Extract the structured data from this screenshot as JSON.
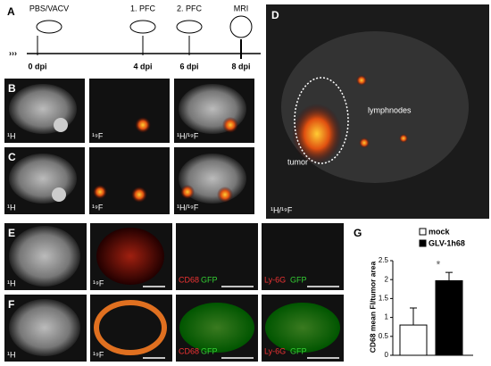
{
  "figure": {
    "panel_letters": [
      "A",
      "B",
      "C",
      "D",
      "E",
      "F",
      "G"
    ],
    "timeline": [
      {
        "event": "PBS/VACV",
        "day": "0 dpi"
      },
      {
        "event": "1. PFC",
        "day": "4 dpi"
      },
      {
        "event": "2. PFC",
        "day": "6 dpi"
      },
      {
        "event": "MRI",
        "day": "8 dpi"
      }
    ],
    "row_b": [
      "¹H",
      "¹⁹F",
      "¹H/¹⁹F"
    ],
    "row_c": [
      "¹H",
      "¹⁹F",
      "¹H/¹⁹F"
    ],
    "panel_d": {
      "tumor": "tumor",
      "lymph": "lymphnodes",
      "nuclei": "¹H/¹⁹F"
    },
    "row_e": {
      "nuclei": [
        "¹H",
        "¹⁹F"
      ],
      "stains": [
        [
          "CD68",
          "GFP"
        ],
        [
          "Ly-6G",
          "GFP"
        ]
      ]
    },
    "row_f": {
      "nuclei": [
        "¹H",
        "¹⁹F"
      ],
      "stains": [
        [
          "CD68",
          "GFP"
        ],
        [
          "Ly-6G",
          "GFP"
        ]
      ]
    }
  },
  "chart_data": {
    "type": "bar",
    "ylabel": "CD68 mean FI/tumor area",
    "series": [
      {
        "name": "mock",
        "color": "#ffffff",
        "values": [
          0.8
        ],
        "errors": [
          0.45
        ]
      },
      {
        "name": "GLV-1h68",
        "color": "#000000",
        "values": [
          1.97
        ],
        "errors": [
          0.22
        ]
      }
    ],
    "annotation": "*",
    "ylim": [
      0,
      2.5
    ],
    "yticks": [
      0,
      0.5,
      1,
      1.5,
      2,
      2.5
    ]
  }
}
